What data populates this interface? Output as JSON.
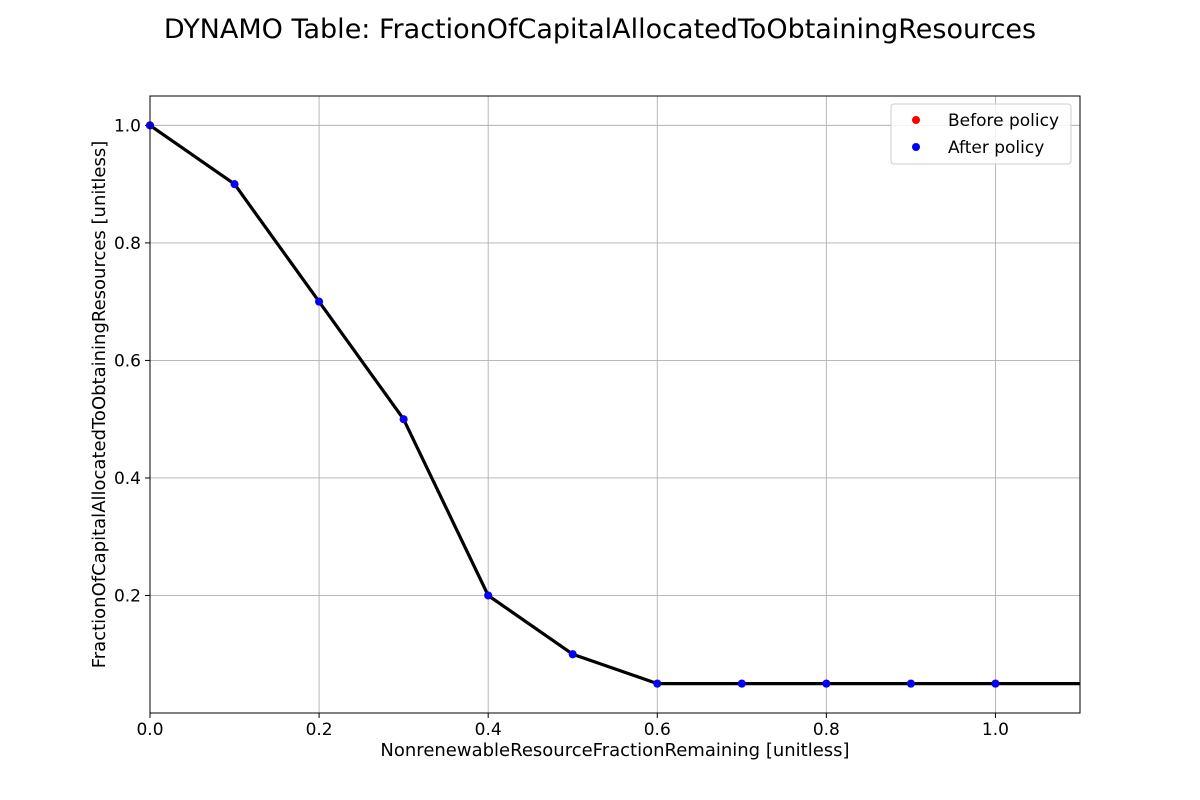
{
  "chart_data": {
    "type": "line",
    "title": "DYNAMO Table: FractionOfCapitalAllocatedToObtainingResources",
    "xlabel": "NonrenewableResourceFractionRemaining [unitless]",
    "ylabel": "FractionOfCapitalAllocatedToObtainingResources [unitless]",
    "xlim": [
      0.0,
      1.1
    ],
    "ylim": [
      0.0,
      1.05
    ],
    "xticks": [
      0.0,
      0.2,
      0.4,
      0.6,
      0.8,
      1.0
    ],
    "xtick_labels": [
      "0.0",
      "0.2",
      "0.4",
      "0.6",
      "0.8",
      "1.0"
    ],
    "yticks": [
      0.2,
      0.4,
      0.6,
      0.8,
      1.0
    ],
    "ytick_labels": [
      "0.2",
      "0.4",
      "0.6",
      "0.8",
      "1.0"
    ],
    "grid": true,
    "legend_position": "top-right",
    "line": {
      "color": "#000000",
      "x": [
        0.0,
        0.1,
        0.2,
        0.3,
        0.4,
        0.5,
        0.6,
        0.7,
        0.8,
        0.9,
        1.0,
        1.1
      ],
      "y": [
        1.0,
        0.9,
        0.7,
        0.5,
        0.2,
        0.1,
        0.05,
        0.05,
        0.05,
        0.05,
        0.05,
        0.05
      ]
    },
    "series": [
      {
        "name": "Before policy",
        "color": "#ff0000",
        "x": [
          0.0,
          0.1,
          0.2,
          0.3,
          0.4,
          0.5,
          0.6,
          0.7,
          0.8,
          0.9,
          1.0
        ],
        "y": [
          1.0,
          0.9,
          0.7,
          0.5,
          0.2,
          0.1,
          0.05,
          0.05,
          0.05,
          0.05,
          0.05
        ]
      },
      {
        "name": "After policy",
        "color": "#0000ff",
        "x": [
          0.0,
          0.1,
          0.2,
          0.3,
          0.4,
          0.5,
          0.6,
          0.7,
          0.8,
          0.9,
          1.0
        ],
        "y": [
          1.0,
          0.9,
          0.7,
          0.5,
          0.2,
          0.1,
          0.05,
          0.05,
          0.05,
          0.05,
          0.05
        ]
      }
    ]
  }
}
